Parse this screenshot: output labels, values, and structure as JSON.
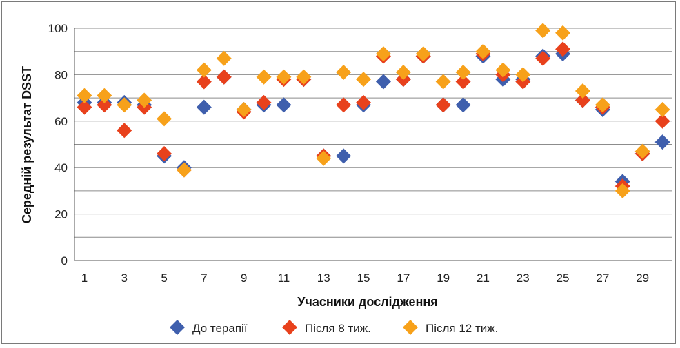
{
  "chart_data": {
    "type": "scatter",
    "xlabel": "Учасники дослідження",
    "ylabel": "Середній результат DSST",
    "xlim": [
      0,
      30
    ],
    "ylim": [
      0,
      100
    ],
    "y_ticks": [
      0,
      20,
      40,
      60,
      80,
      100
    ],
    "x_ticks": [
      1,
      3,
      5,
      7,
      9,
      11,
      13,
      15,
      17,
      19,
      21,
      23,
      25,
      27,
      29
    ],
    "grid": "horizontal",
    "legend_position": "bottom",
    "x": [
      1,
      2,
      3,
      4,
      5,
      6,
      7,
      8,
      9,
      10,
      11,
      12,
      13,
      14,
      15,
      16,
      17,
      18,
      19,
      20,
      21,
      22,
      23,
      24,
      25,
      26,
      27,
      28,
      29,
      30
    ],
    "series": [
      {
        "name": "До терапії",
        "color": "#3f5fad",
        "values": [
          68,
          68,
          68,
          67,
          45,
          40,
          66,
          79,
          65,
          67,
          67,
          78,
          45,
          45,
          67,
          77,
          78,
          88,
          67,
          67,
          88,
          78,
          78,
          88,
          89,
          69,
          65,
          34,
          46,
          51
        ]
      },
      {
        "name": "Після 8 тиж.",
        "color": "#e8411c",
        "values": [
          66,
          67,
          56,
          66,
          46,
          39,
          77,
          79,
          64,
          68,
          78,
          78,
          45,
          67,
          68,
          88,
          78,
          88,
          67,
          77,
          89,
          80,
          77,
          87,
          91,
          69,
          66,
          32,
          46,
          60
        ]
      },
      {
        "name": "Після 12 тиж.",
        "color": "#f7a11a",
        "values": [
          71,
          71,
          67,
          69,
          61,
          39,
          82,
          87,
          65,
          79,
          79,
          79,
          44,
          81,
          78,
          89,
          81,
          89,
          77,
          81,
          90,
          82,
          80,
          99,
          98,
          73,
          67,
          30,
          47,
          65
        ]
      }
    ]
  }
}
